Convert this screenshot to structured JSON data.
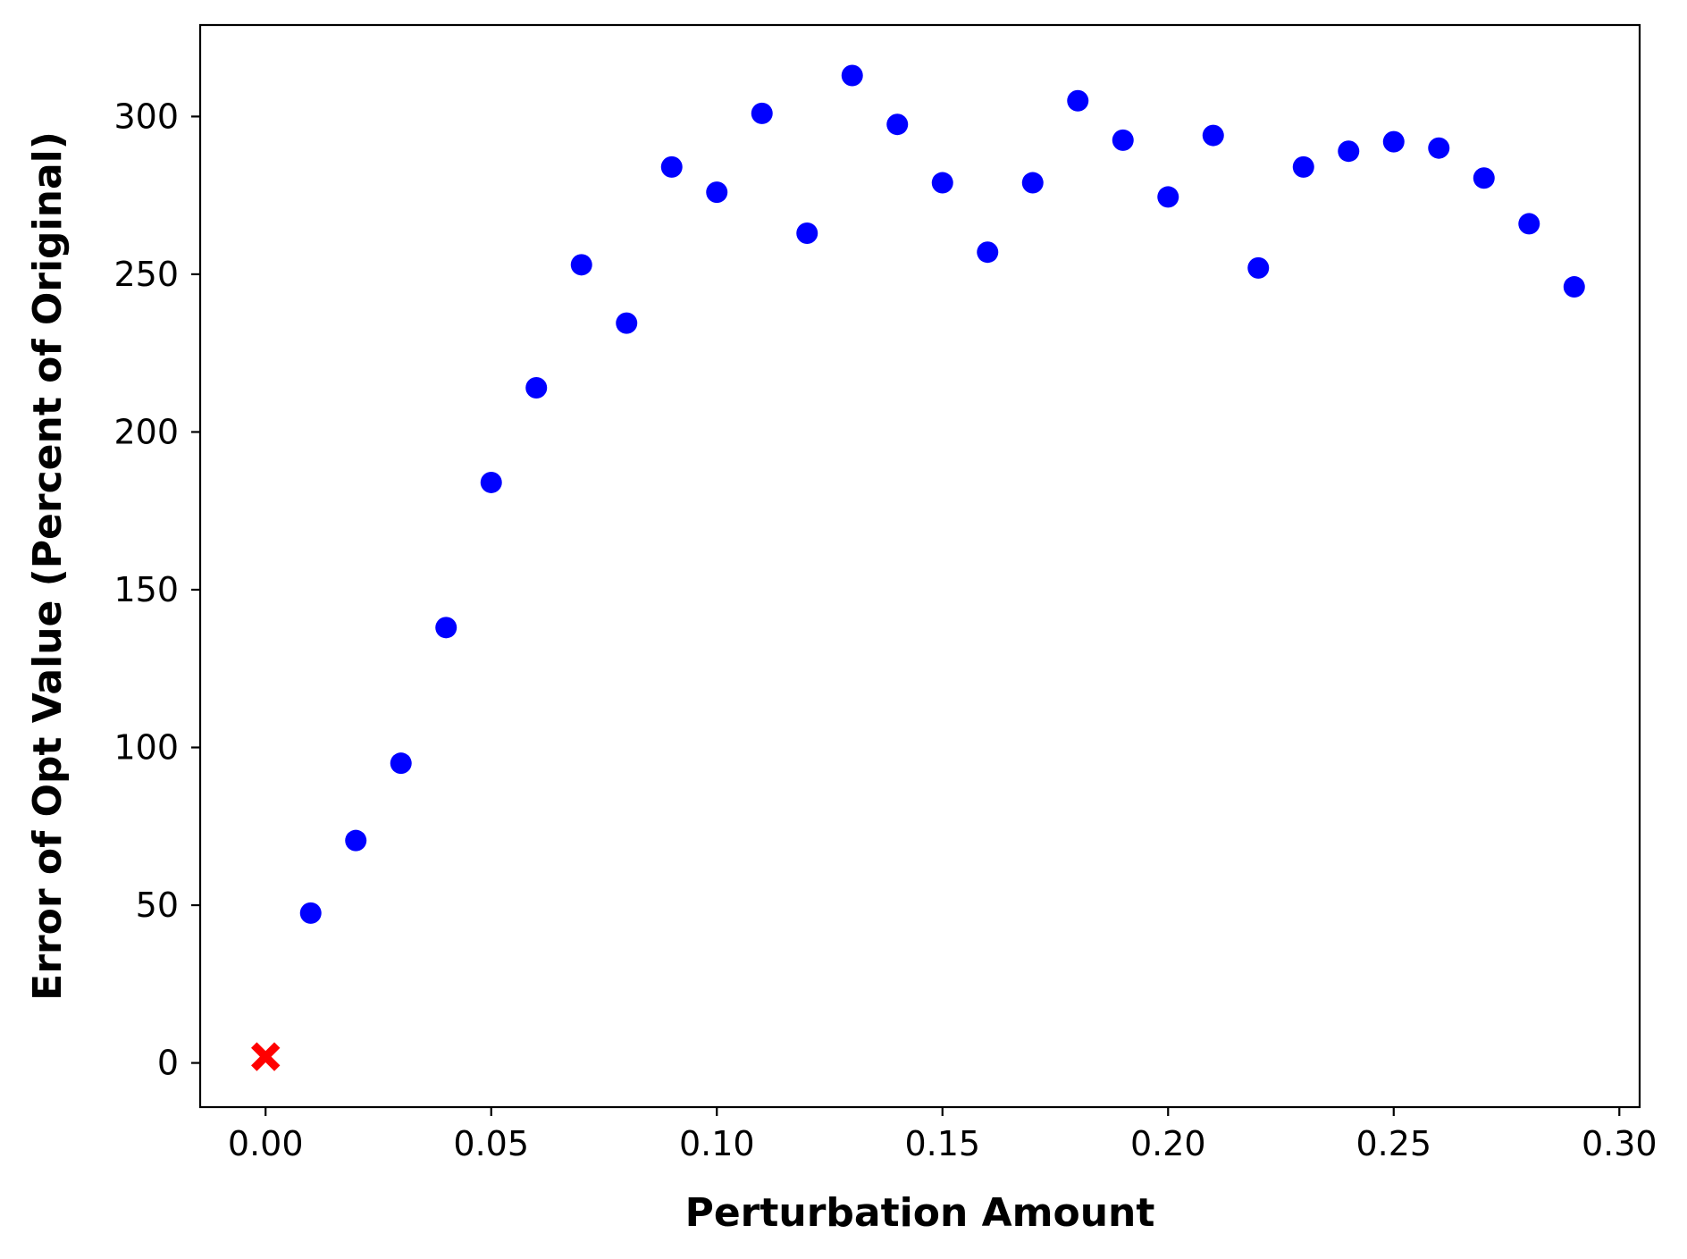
{
  "chart_data": {
    "type": "scatter",
    "title": "",
    "xlabel": "Perturbation Amount",
    "ylabel": "Error of Opt Value (Percent of Original)",
    "xlim": [
      -0.0145,
      0.3045
    ],
    "ylim": [
      -14,
      329
    ],
    "xticks": [
      0.0,
      0.05,
      0.1,
      0.15,
      0.2,
      0.25,
      0.3
    ],
    "xtick_labels": [
      "0.00",
      "0.05",
      "0.10",
      "0.15",
      "0.20",
      "0.25",
      "0.30"
    ],
    "yticks": [
      0,
      50,
      100,
      150,
      200,
      250,
      300
    ],
    "ytick_labels": [
      "0",
      "50",
      "100",
      "150",
      "200",
      "250",
      "300"
    ],
    "grid": false,
    "legend": "none",
    "series": [
      {
        "marker": "circle",
        "color": "#0000ff",
        "points": [
          {
            "x": 0.01,
            "y": 47.5
          },
          {
            "x": 0.02,
            "y": 70.5
          },
          {
            "x": 0.03,
            "y": 95
          },
          {
            "x": 0.04,
            "y": 138
          },
          {
            "x": 0.05,
            "y": 184
          },
          {
            "x": 0.06,
            "y": 214
          },
          {
            "x": 0.07,
            "y": 253
          },
          {
            "x": 0.08,
            "y": 234.5
          },
          {
            "x": 0.09,
            "y": 284
          },
          {
            "x": 0.1,
            "y": 276
          },
          {
            "x": 0.11,
            "y": 301
          },
          {
            "x": 0.12,
            "y": 263
          },
          {
            "x": 0.13,
            "y": 313
          },
          {
            "x": 0.14,
            "y": 297.5
          },
          {
            "x": 0.15,
            "y": 279
          },
          {
            "x": 0.16,
            "y": 257
          },
          {
            "x": 0.17,
            "y": 279
          },
          {
            "x": 0.18,
            "y": 305
          },
          {
            "x": 0.19,
            "y": 292.5
          },
          {
            "x": 0.2,
            "y": 274.5
          },
          {
            "x": 0.21,
            "y": 294
          },
          {
            "x": 0.22,
            "y": 252
          },
          {
            "x": 0.23,
            "y": 284
          },
          {
            "x": 0.24,
            "y": 289
          },
          {
            "x": 0.25,
            "y": 292
          },
          {
            "x": 0.26,
            "y": 290
          },
          {
            "x": 0.27,
            "y": 280.5
          },
          {
            "x": 0.28,
            "y": 266
          },
          {
            "x": 0.29,
            "y": 246
          }
        ]
      },
      {
        "marker": "x",
        "color": "#ff0000",
        "points": [
          {
            "x": 0.0,
            "y": 2
          }
        ]
      }
    ]
  }
}
